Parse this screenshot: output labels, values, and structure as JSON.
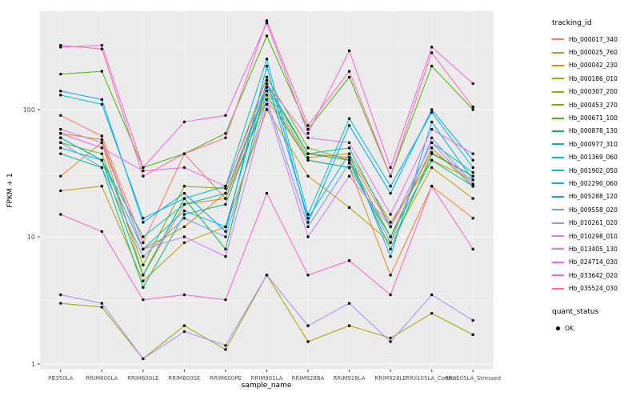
{
  "figure": {
    "background": "#FFFFFF",
    "panel_background": "#EBEBEB",
    "gridline_color": "#FFFFFF",
    "tick_label_color": "#4D4D4D",
    "point_color": "#000000"
  },
  "chart_data": {
    "type": "line",
    "title": "",
    "xlabel": "sample_name",
    "ylabel": "FPKM + 1",
    "y_scale": "log10",
    "y_ticks": [
      1,
      10,
      100
    ],
    "y_minor": [
      3.162,
      31.62,
      316.2
    ],
    "ylim": [
      1,
      600
    ],
    "grid": true,
    "legend_position": "right",
    "categories": [
      "PB350LA",
      "RRIM600LA",
      "RRIM600LE",
      "RRIM600SE",
      "RRIM600PE",
      "RRIM901LA",
      "RRIM928BA",
      "RRIM928LA",
      "RRIM928LE",
      "RRII105LA_Control",
      "RRII105LA_Stressed"
    ],
    "series": [
      {
        "name": "Hb_000017_340",
        "color": "#F8766D",
        "values": [
          90,
          62,
          9,
          45,
          20,
          150,
          45,
          42,
          12,
          46,
          30
        ]
      },
      {
        "name": "Hb_000025_760",
        "color": "#E88526",
        "values": [
          30,
          55,
          5,
          18,
          20,
          120,
          40,
          35,
          5,
          25,
          14
        ]
      },
      {
        "name": "Hb_000042_230",
        "color": "#D39200",
        "values": [
          65,
          58,
          8,
          12,
          22,
          140,
          42,
          45,
          13,
          40,
          28
        ]
      },
      {
        "name": "Hb_000186_010",
        "color": "#BB9D00",
        "values": [
          23,
          25,
          4.5,
          9,
          12,
          100,
          30,
          17,
          9,
          35,
          20
        ]
      },
      {
        "name": "Hb_000307_200",
        "color": "#A3A500",
        "values": [
          3,
          2.8,
          1.1,
          2,
          1.3,
          5,
          1.5,
          2,
          1.6,
          2.5,
          1.7
        ]
      },
      {
        "name": "Hb_000453_270",
        "color": "#7CAE00",
        "values": [
          55,
          45,
          6,
          25,
          24,
          180,
          50,
          40,
          10,
          50,
          25
        ]
      },
      {
        "name": "Hb_000671_100",
        "color": "#49B500",
        "values": [
          190,
          200,
          35,
          45,
          65,
          380,
          70,
          180,
          30,
          220,
          100
        ]
      },
      {
        "name": "Hb_000878_130",
        "color": "#00BC51",
        "values": [
          60,
          40,
          5,
          20,
          8,
          160,
          45,
          40,
          8,
          45,
          30
        ]
      },
      {
        "name": "Hb_000977_310",
        "color": "#00C087",
        "values": [
          45,
          35,
          4,
          15,
          18,
          130,
          40,
          35,
          10,
          40,
          25
        ]
      },
      {
        "name": "Hb_001369_060",
        "color": "#00C0AF",
        "values": [
          50,
          40,
          10,
          18,
          22,
          150,
          45,
          50,
          12,
          55,
          32
        ]
      },
      {
        "name": "Hb_001902_050",
        "color": "#00BDD0",
        "values": [
          130,
          110,
          14,
          20,
          25,
          250,
          15,
          85,
          25,
          95,
          35
        ]
      },
      {
        "name": "Hb_002290_060",
        "color": "#00B5EC",
        "values": [
          60,
          40,
          8,
          16,
          12,
          170,
          14,
          45,
          7,
          80,
          28
        ]
      },
      {
        "name": "Hb_005288_120",
        "color": "#00A7FF",
        "values": [
          140,
          120,
          13,
          22,
          11,
          220,
          13,
          75,
          22,
          100,
          40
        ]
      },
      {
        "name": "Hb_009558_020",
        "color": "#7997FF",
        "values": [
          55,
          35,
          7,
          14,
          10,
          120,
          12,
          38,
          9,
          60,
          26
        ]
      },
      {
        "name": "Hb_010261_020",
        "color": "#AC88FF",
        "values": [
          3.5,
          3,
          1.1,
          1.8,
          1.4,
          5,
          2,
          3,
          1.5,
          3.5,
          2.2
        ]
      },
      {
        "name": "Hb_010298_010",
        "color": "#CF78FF",
        "values": [
          70,
          55,
          8,
          10,
          7,
          110,
          10,
          30,
          12,
          55,
          25
        ]
      },
      {
        "name": "Hb_013405_130",
        "color": "#E76BF3",
        "values": [
          65,
          50,
          33,
          35,
          25,
          160,
          60,
          55,
          15,
          70,
          45
        ]
      },
      {
        "name": "Hb_024714_030",
        "color": "#F763E0",
        "values": [
          310,
          320,
          35,
          80,
          90,
          480,
          65,
          290,
          35,
          310,
          160
        ]
      },
      {
        "name": "Hb_033642_020",
        "color": "#FF61C7",
        "values": [
          15,
          11,
          3.2,
          3.5,
          3.2,
          22,
          5,
          6.5,
          3.5,
          25,
          8
        ]
      },
      {
        "name": "Hb_035524_030",
        "color": "#FF68A8",
        "values": [
          320,
          300,
          30,
          45,
          60,
          500,
          75,
          200,
          30,
          280,
          105
        ]
      }
    ],
    "legend": {
      "tracking_title": "tracking_id",
      "quant_title": "quant_status",
      "quant_entries": [
        {
          "label": "OK"
        }
      ]
    }
  }
}
